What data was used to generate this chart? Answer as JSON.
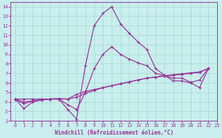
{
  "xlabel": "Windchill (Refroidissement éolien,°C)",
  "bg_color": "#c8eeed",
  "line_color": "#993399",
  "grid_color": "#a8d8cc",
  "xlim": [
    -0.5,
    23
  ],
  "ylim": [
    2,
    14.5
  ],
  "xticks": [
    0,
    1,
    2,
    3,
    4,
    5,
    6,
    7,
    8,
    9,
    10,
    11,
    12,
    13,
    14,
    15,
    16,
    17,
    18,
    19,
    20,
    21,
    22,
    23
  ],
  "yticks": [
    2,
    3,
    4,
    5,
    6,
    7,
    8,
    9,
    10,
    11,
    12,
    13,
    14
  ],
  "series": [
    [
      4.3,
      3.3,
      4.0,
      4.2,
      4.3,
      4.3,
      3.2,
      2.2,
      7.8,
      12.0,
      13.3,
      14.0,
      12.2,
      11.2,
      10.3,
      9.5,
      7.5,
      6.8,
      6.2,
      6.2,
      6.0,
      5.5,
      7.5
    ],
    [
      4.3,
      4.3,
      4.3,
      4.3,
      4.3,
      4.3,
      4.3,
      4.8,
      5.1,
      5.3,
      5.5,
      5.7,
      5.9,
      6.1,
      6.3,
      6.5,
      6.6,
      6.7,
      6.8,
      6.9,
      7.0,
      7.1,
      7.5
    ],
    [
      4.3,
      4.0,
      4.1,
      4.2,
      4.3,
      4.35,
      4.3,
      4.5,
      4.9,
      5.2,
      5.5,
      5.7,
      5.9,
      6.1,
      6.3,
      6.5,
      6.6,
      6.75,
      6.85,
      6.95,
      7.05,
      7.15,
      7.5
    ],
    [
      4.3,
      3.8,
      4.1,
      4.25,
      4.3,
      4.3,
      3.7,
      3.2,
      5.0,
      7.5,
      9.0,
      9.8,
      9.0,
      8.5,
      8.1,
      7.8,
      7.0,
      6.75,
      6.5,
      6.5,
      6.05,
      6.3,
      7.5
    ]
  ],
  "x_values": [
    0,
    1,
    2,
    3,
    4,
    5,
    6,
    7,
    8,
    9,
    10,
    11,
    12,
    13,
    14,
    15,
    16,
    17,
    18,
    19,
    20,
    21,
    22
  ]
}
